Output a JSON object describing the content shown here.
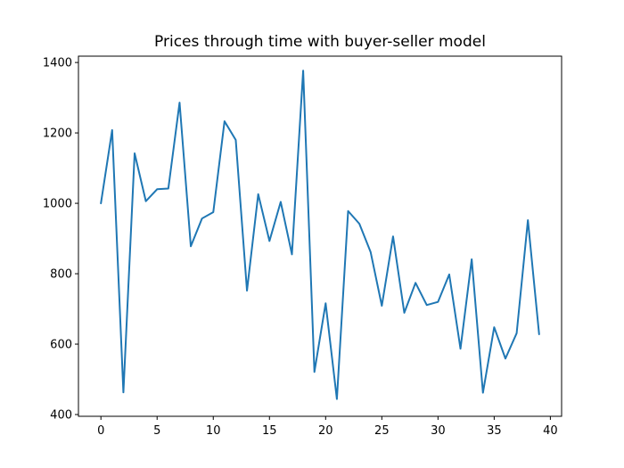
{
  "chart_data": {
    "type": "line",
    "title": "Prices through time with buyer-seller model",
    "xlabel": "",
    "ylabel": "",
    "xlim": [
      -2,
      41
    ],
    "ylim": [
      395,
      1418
    ],
    "xticks": [
      0,
      5,
      10,
      15,
      20,
      25,
      30,
      35,
      40
    ],
    "yticks": [
      400,
      600,
      800,
      1000,
      1200,
      1400
    ],
    "grid": false,
    "legend": "none",
    "series": [
      {
        "color": "#1f77b4",
        "x": [
          0,
          1,
          2,
          3,
          4,
          5,
          6,
          7,
          8,
          9,
          10,
          11,
          12,
          13,
          14,
          15,
          16,
          17,
          18,
          19,
          20,
          21,
          22,
          23,
          24,
          25,
          26,
          27,
          28,
          29,
          30,
          31,
          32,
          33,
          34,
          35,
          36,
          37,
          38,
          39
        ],
        "y": [
          1000,
          1208,
          463,
          1142,
          1006,
          1040,
          1042,
          1286,
          878,
          957,
          975,
          1233,
          1180,
          752,
          1026,
          893,
          1004,
          855,
          1377,
          521,
          716,
          444,
          978,
          942,
          862,
          709,
          906,
          689,
          774,
          711,
          720,
          798,
          587,
          841,
          462,
          648,
          559,
          631,
          952,
          628
        ]
      }
    ]
  }
}
